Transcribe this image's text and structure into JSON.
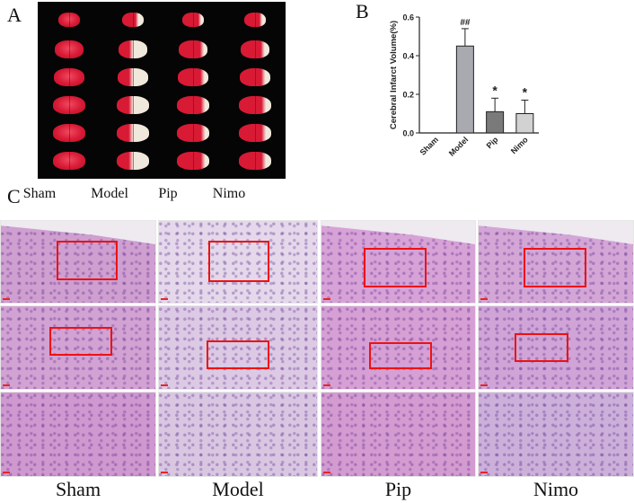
{
  "panels": {
    "a": "A",
    "b": "B",
    "c": "C"
  },
  "panel_a": {
    "groups": [
      "Sham",
      "Model",
      "Pip",
      "Nimo"
    ]
  },
  "panel_c": {
    "groups": [
      "Sham",
      "Model",
      "Pip",
      "Nimo"
    ]
  },
  "chart_data": {
    "type": "bar",
    "categories": [
      "Sham",
      "Model",
      "Pip",
      "Nimo"
    ],
    "values": [
      0.0,
      0.45,
      0.11,
      0.1
    ],
    "errors": [
      0.0,
      0.09,
      0.07,
      0.07
    ],
    "significance": [
      "",
      "##",
      "*",
      "*"
    ],
    "bar_colors": [
      "#ffffff",
      "#a9a9b0",
      "#7a7a7a",
      "#d2d2d2"
    ],
    "title": "",
    "xlabel": "",
    "ylabel": "Cerebral Infarct Volume(%)",
    "ylim": [
      0,
      0.6
    ],
    "yticks": [
      "0.0",
      "0.2",
      "0.4",
      "0.6"
    ],
    "grid": false
  },
  "colors": {
    "stain_bg": "#d7a8d4",
    "roi": "#ee1111",
    "brain_red": "#d81a35",
    "infarct": "#f1e8dc"
  }
}
